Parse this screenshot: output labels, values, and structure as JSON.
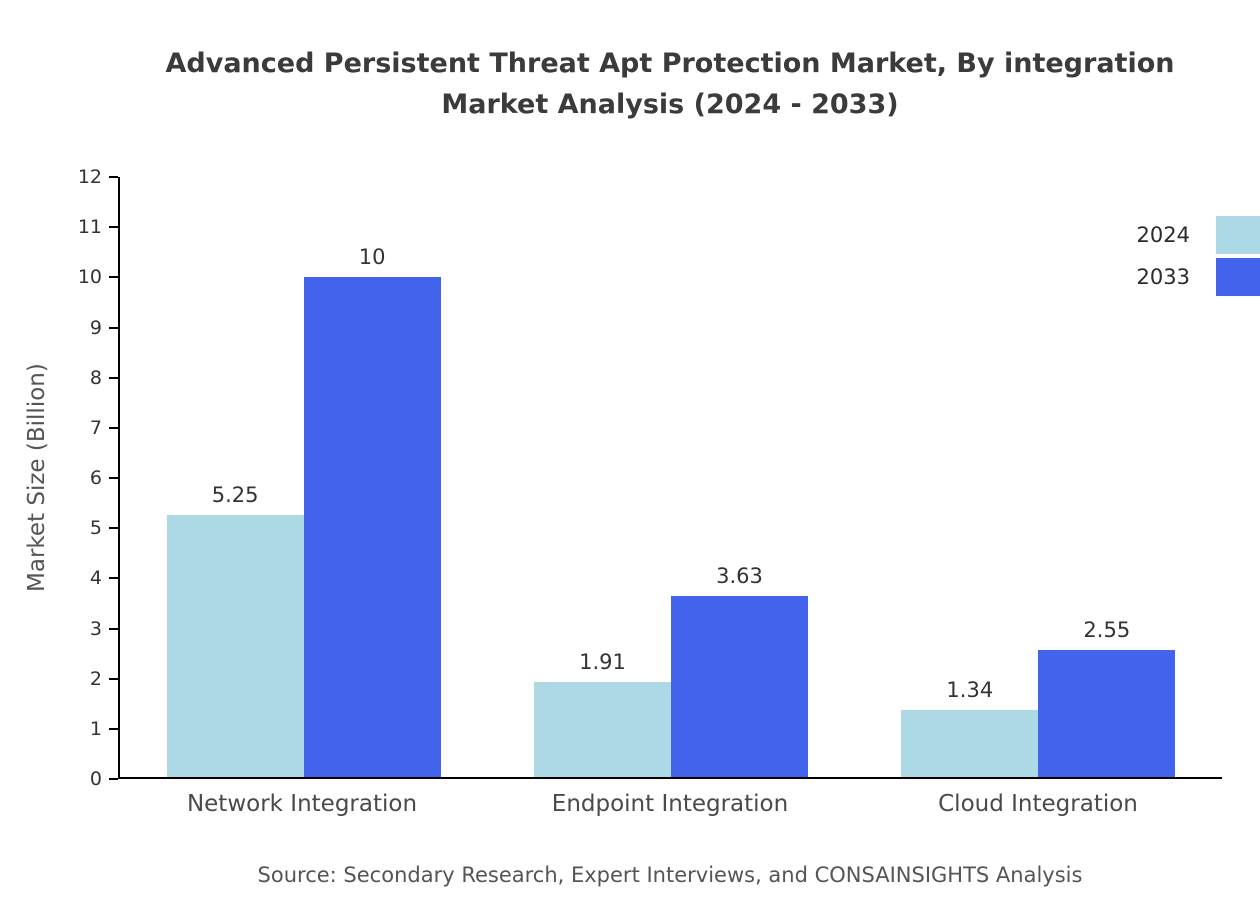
{
  "chart_data": {
    "type": "bar",
    "title": "Advanced Persistent Threat Apt Protection Market, By integration Market Analysis (2024 - 2033)",
    "title_lines": [
      "Advanced Persistent Threat Apt Protection Market, By integration",
      "Market Analysis (2024 - 2033)"
    ],
    "ylabel": "Market Size (Billion)",
    "xlabel": "",
    "ylim": [
      0,
      12
    ],
    "ytick_step": 1,
    "grid": false,
    "legend_position": "top-right",
    "categories": [
      "Network Integration",
      "Endpoint Integration",
      "Cloud Integration"
    ],
    "series": [
      {
        "name": "2024",
        "color": "#add8e6",
        "values": [
          5.25,
          1.91,
          1.34
        ]
      },
      {
        "name": "2033",
        "color": "#4263eb",
        "values": [
          10,
          3.63,
          2.55
        ]
      }
    ],
    "source": "Source: Secondary Research, Expert Interviews, and CONSAINSIGHTS Analysis"
  },
  "colors": {
    "axis": "#000000",
    "title_text": "#3b3b3b",
    "tick_text": "#333333",
    "category_text": "#4a4a4a",
    "source_text": "#555555"
  }
}
